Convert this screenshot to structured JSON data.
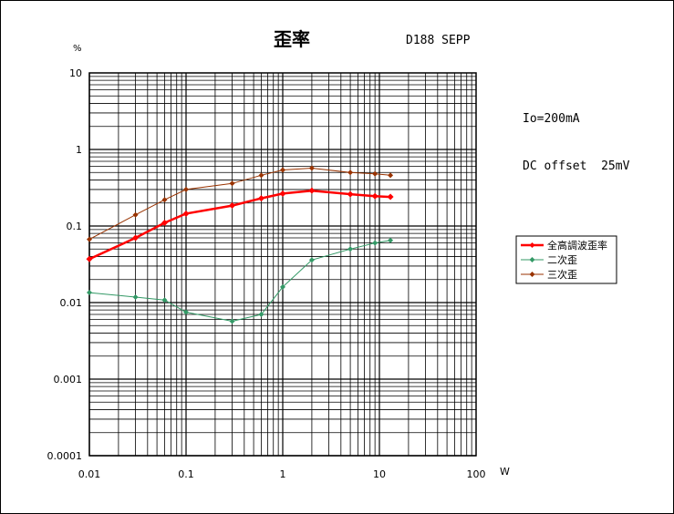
{
  "chart_data": {
    "type": "line",
    "title": "歪率",
    "subtitle": "D188 SEPP",
    "ylabel": "%",
    "xlabel": "W",
    "xscale": "log",
    "yscale": "log",
    "xlim": [
      0.01,
      100
    ],
    "ylim": [
      0.0001,
      10
    ],
    "xticks": [
      "0.01",
      "0.1",
      "1",
      "10",
      "100"
    ],
    "yticks": [
      "0.0001",
      "0.001",
      "0.01",
      "0.1",
      "1",
      "10"
    ],
    "grid": true,
    "legend_position": "right",
    "annotations": [
      "Io=200mA",
      "DC offset  25mV"
    ],
    "series": [
      {
        "name": "全高調波歪率",
        "color": "#ff0000",
        "marker": "diamond",
        "x": [
          0.01,
          0.03,
          0.06,
          0.1,
          0.3,
          0.6,
          1,
          2,
          5,
          9,
          13
        ],
        "y": [
          0.037,
          0.07,
          0.11,
          0.145,
          0.185,
          0.23,
          0.265,
          0.29,
          0.26,
          0.245,
          0.24
        ]
      },
      {
        "name": "二次歪",
        "color": "#339966",
        "marker": "diamond",
        "x": [
          0.01,
          0.03,
          0.06,
          0.1,
          0.3,
          0.6,
          1,
          2,
          5,
          9,
          13
        ],
        "y": [
          0.0135,
          0.0118,
          0.0108,
          0.0075,
          0.0057,
          0.007,
          0.016,
          0.036,
          0.05,
          0.06,
          0.065
        ]
      },
      {
        "name": "三次歪",
        "color": "#993300",
        "marker": "diamond",
        "x": [
          0.01,
          0.03,
          0.06,
          0.1,
          0.3,
          0.6,
          1,
          2,
          5,
          9,
          13
        ],
        "y": [
          0.067,
          0.14,
          0.22,
          0.3,
          0.36,
          0.46,
          0.54,
          0.57,
          0.5,
          0.48,
          0.46
        ]
      }
    ]
  }
}
